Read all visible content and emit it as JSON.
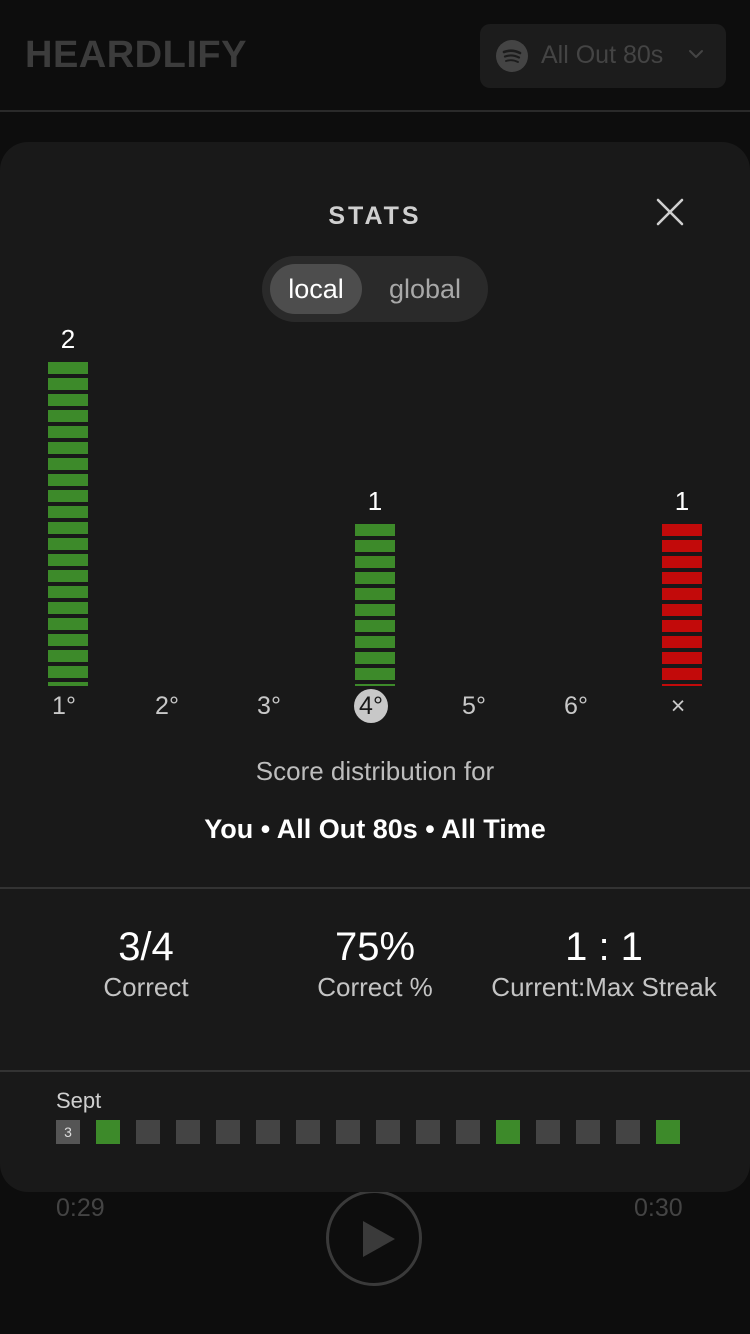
{
  "header": {
    "logo": "HEARDLIFY",
    "playlist": "All Out 80s"
  },
  "player": {
    "elapsed": "0:29",
    "duration": "0:30"
  },
  "stats_modal": {
    "title": "STATS",
    "toggle": {
      "local": "local",
      "global": "global",
      "selected": "local"
    },
    "caption": "Score distribution for",
    "detail": "You • All Out 80s • All Time",
    "summary": [
      {
        "value": "3/4",
        "label": "Correct"
      },
      {
        "value": "75%",
        "label": "Correct %"
      },
      {
        "value": "1 : 1",
        "label": "Current:Max Streak"
      }
    ],
    "calendar": {
      "month": "Sept",
      "today": "3",
      "days": [
        "today",
        "green",
        "grey",
        "grey",
        "grey",
        "grey",
        "grey",
        "grey",
        "grey",
        "grey",
        "grey",
        "green",
        "grey",
        "grey",
        "grey",
        "green"
      ]
    }
  },
  "chart_data": {
    "type": "bar",
    "categories": [
      "1°",
      "2°",
      "3°",
      "4°",
      "5°",
      "6°",
      "×"
    ],
    "values": [
      2,
      0,
      0,
      1,
      0,
      0,
      1
    ],
    "data_labels": [
      "2",
      "",
      "",
      "1",
      "",
      "",
      "1"
    ],
    "highlighted_category": "4°",
    "colors": {
      "correct": "#3d8a2a",
      "fail": "#c20a0a"
    },
    "title": "",
    "xlabel": "",
    "ylabel": "",
    "ylim": [
      0,
      2
    ]
  }
}
